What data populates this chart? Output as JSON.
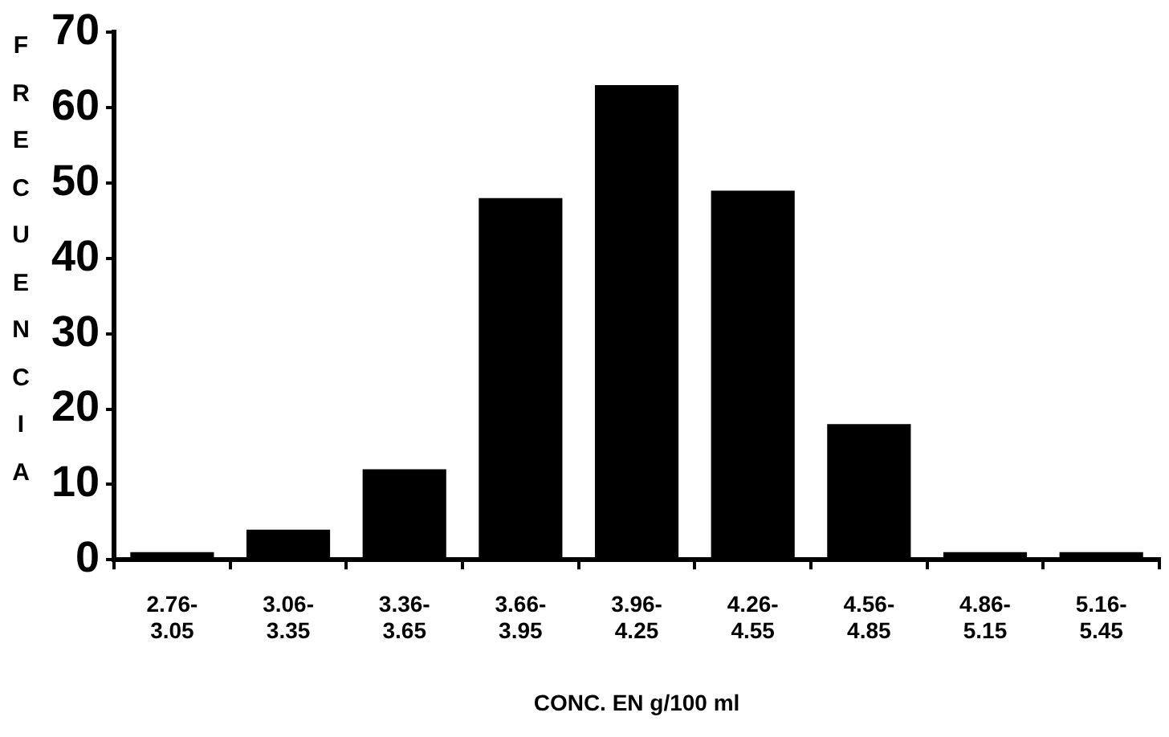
{
  "chart_data": {
    "type": "bar",
    "xlabel": "CONC. EN g/100 ml",
    "ylabel": "FRECUENCIA",
    "categories": [
      "2.76-3.05",
      "3.06-3.35",
      "3.36-3.65",
      "3.66-3.95",
      "3.96-4.25",
      "4.26-4.55",
      "4.56-4.85",
      "4.86-5.15",
      "5.16-5.45"
    ],
    "values": [
      1,
      4,
      12,
      48,
      63,
      49,
      18,
      1,
      1
    ],
    "color": "#000000",
    "ylim": [
      0,
      70
    ],
    "yticks": [
      0,
      10,
      20,
      30,
      40,
      50,
      60,
      70
    ],
    "grid": false,
    "legend": false
  }
}
